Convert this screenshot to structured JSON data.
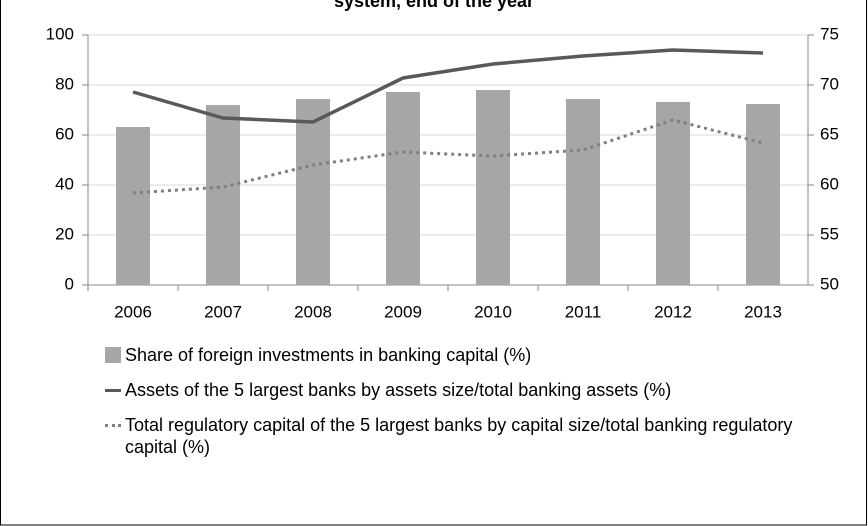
{
  "chart_data": {
    "type": "combo",
    "title": "system, end of the year",
    "categories": [
      "2006",
      "2007",
      "2008",
      "2009",
      "2010",
      "2011",
      "2012",
      "2013"
    ],
    "series": [
      {
        "name": "Share of foreign investments in banking capital (%)",
        "type": "bar",
        "color": "#a6a6a6",
        "axis": "y",
        "values": [
          63.2,
          72,
          74.4,
          77.2,
          78,
          74.4,
          73.2,
          72.4
        ]
      },
      {
        "name": "Assets of the 5 largest banks by assets size/total banking assets (%)",
        "type": "line",
        "style": "solid",
        "color": "#595959",
        "axis": "y2",
        "values": [
          69.3,
          66.7,
          66.3,
          70.7,
          72.1,
          72.9,
          73.5,
          73.2
        ]
      },
      {
        "name": "Total regulatory capital of the 5 largest banks by capital size/total banking regulatory capital (%)",
        "type": "line",
        "style": "dotted",
        "color": "#7f7f7f",
        "axis": "y2",
        "values": [
          59.2,
          59.8,
          62.0,
          63.3,
          62.9,
          63.5,
          66.5,
          64.2
        ]
      }
    ],
    "ylim": [
      0,
      100
    ],
    "yticks": [
      0,
      20,
      40,
      60,
      80,
      100
    ],
    "y2lim": [
      50,
      75
    ],
    "y2ticks": [
      50,
      55,
      60,
      65,
      70,
      75
    ],
    "grid": true
  }
}
